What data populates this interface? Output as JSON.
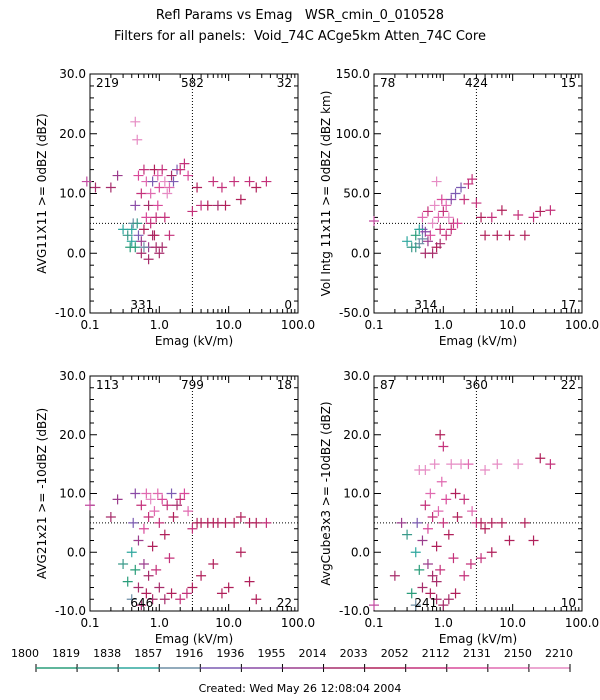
{
  "header": {
    "title": "Refl Params vs Emag   WSR_cmin_0_010528",
    "subtitle": "Filters for all panels:  Void_74C ACge5km Atten_74C Core"
  },
  "footer": {
    "created": "Created: Wed May 26 12:08:04 2004"
  },
  "colorbar": {
    "labels": [
      "1800",
      "1819",
      "1838",
      "1857",
      "1916",
      "1936",
      "1955",
      "2014",
      "2033",
      "2052",
      "2112",
      "2131",
      "2150",
      "2210"
    ],
    "colors": [
      "#2a9d7a",
      "#3a9a8a",
      "#2ea79e",
      "#6e8fa6",
      "#7c5cb2",
      "#8a4aa6",
      "#9b3d8d",
      "#a72d6b",
      "#b0205a",
      "#c4317a",
      "#d94a9a",
      "#e06ab0",
      "#e68cc4",
      "#c24aa0"
    ]
  },
  "chart_data": [
    {
      "type": "scatter",
      "xlabel": "Emag (kV/m)",
      "ylabel": "AVG11X11 >= 0dBZ (dBZ)",
      "xscale": "log",
      "xlim": [
        0.1,
        100.0
      ],
      "ylim": [
        -10,
        30
      ],
      "xticks": [
        "0.1",
        "1.0",
        "10.0",
        "100.0"
      ],
      "yticks": [
        "-10.0",
        "0.0",
        "10.0",
        "20.0",
        "30.0"
      ],
      "threshold_x": 3.0,
      "threshold_y": 5.0,
      "quadrant_counts": {
        "top_left": "219",
        "top_mid": "582",
        "top_right": "32",
        "bottom_mid": "331",
        "bottom_right": "0"
      },
      "points": [
        [
          0.09,
          12,
          13
        ],
        [
          0.12,
          11,
          7
        ],
        [
          0.2,
          11,
          7
        ],
        [
          0.25,
          13,
          6
        ],
        [
          0.3,
          4,
          2
        ],
        [
          0.35,
          3,
          1
        ],
        [
          0.38,
          1,
          0
        ],
        [
          0.4,
          2,
          2
        ],
        [
          0.42,
          5,
          3
        ],
        [
          0.45,
          8,
          5
        ],
        [
          0.45,
          22,
          12
        ],
        [
          0.48,
          19,
          12
        ],
        [
          0.5,
          3,
          4
        ],
        [
          0.5,
          13,
          10
        ],
        [
          0.55,
          0,
          7
        ],
        [
          0.55,
          10,
          9
        ],
        [
          0.6,
          14,
          9
        ],
        [
          0.6,
          4,
          8
        ],
        [
          0.65,
          6,
          10
        ],
        [
          0.65,
          12,
          11
        ],
        [
          0.7,
          8,
          7
        ],
        [
          0.7,
          1,
          6
        ],
        [
          0.75,
          10,
          11
        ],
        [
          0.8,
          12,
          4
        ],
        [
          0.8,
          3,
          7
        ],
        [
          0.85,
          14,
          8
        ],
        [
          0.9,
          6,
          9
        ],
        [
          0.95,
          13,
          11
        ],
        [
          1.0,
          11,
          10
        ],
        [
          1.0,
          0,
          7
        ],
        [
          1.1,
          14,
          9
        ],
        [
          1.2,
          12,
          12
        ],
        [
          1.3,
          10,
          12
        ],
        [
          1.4,
          11,
          11
        ],
        [
          1.5,
          13,
          7
        ],
        [
          1.6,
          12,
          4
        ],
        [
          1.8,
          14,
          4
        ],
        [
          2.0,
          14,
          9
        ],
        [
          2.3,
          15,
          9
        ],
        [
          2.6,
          13,
          10
        ],
        [
          3.0,
          7,
          9
        ],
        [
          3.5,
          11,
          8
        ],
        [
          4,
          8,
          9
        ],
        [
          5,
          8,
          8
        ],
        [
          6,
          12,
          9
        ],
        [
          7,
          8,
          7
        ],
        [
          8,
          11,
          9
        ],
        [
          9,
          8,
          8
        ],
        [
          12,
          12,
          9
        ],
        [
          15,
          9,
          8
        ],
        [
          20,
          12,
          9
        ],
        [
          25,
          11,
          8
        ],
        [
          35,
          12,
          9
        ],
        [
          0.9,
          1,
          7
        ],
        [
          0.55,
          2,
          6
        ],
        [
          0.45,
          1,
          0
        ],
        [
          0.48,
          5,
          1
        ],
        [
          0.4,
          4,
          2
        ],
        [
          0.6,
          1,
          3
        ],
        [
          0.7,
          -1,
          7
        ],
        [
          0.75,
          5,
          9
        ],
        [
          0.85,
          3,
          8
        ],
        [
          0.95,
          8,
          10
        ],
        [
          1.2,
          6,
          9
        ],
        [
          1.4,
          3,
          9
        ],
        [
          1.1,
          1,
          7
        ]
      ]
    },
    {
      "type": "scatter",
      "xlabel": "Emag (kV/m)",
      "ylabel": "Vol Intg 11x11 >= 0dBZ (dBZ km)",
      "xscale": "log",
      "xlim": [
        0.1,
        100.0
      ],
      "ylim": [
        -50,
        150
      ],
      "xticks": [
        "0.1",
        "1.0",
        "10.0",
        "100.0"
      ],
      "yticks": [
        "-50.0",
        "0.0",
        "50.0",
        "100.0",
        "150.0"
      ],
      "threshold_x": 3.0,
      "threshold_y": 25.0,
      "quadrant_counts": {
        "top_left": "78",
        "top_mid": "424",
        "top_right": "15",
        "bottom_mid": "314",
        "bottom_right": "17"
      },
      "points": [
        [
          0.1,
          27,
          13
        ],
        [
          0.3,
          10,
          2
        ],
        [
          0.35,
          5,
          1
        ],
        [
          0.4,
          15,
          0
        ],
        [
          0.45,
          8,
          3
        ],
        [
          0.5,
          20,
          4
        ],
        [
          0.5,
          30,
          11
        ],
        [
          0.55,
          0,
          7
        ],
        [
          0.6,
          35,
          9
        ],
        [
          0.65,
          15,
          10
        ],
        [
          0.7,
          25,
          12
        ],
        [
          0.75,
          40,
          12
        ],
        [
          0.8,
          5,
          8
        ],
        [
          0.85,
          30,
          11
        ],
        [
          0.9,
          20,
          9
        ],
        [
          0.95,
          45,
          10
        ],
        [
          1.0,
          35,
          9
        ],
        [
          1.1,
          40,
          11
        ],
        [
          1.2,
          30,
          12
        ],
        [
          1.3,
          45,
          5
        ],
        [
          1.4,
          25,
          9
        ],
        [
          1.5,
          50,
          4
        ],
        [
          1.8,
          55,
          4
        ],
        [
          2.0,
          45,
          9
        ],
        [
          2.3,
          58,
          9
        ],
        [
          2.6,
          62,
          9
        ],
        [
          3.0,
          42,
          9
        ],
        [
          3.5,
          30,
          8
        ],
        [
          4,
          15,
          8
        ],
        [
          5,
          30,
          9
        ],
        [
          6,
          15,
          8
        ],
        [
          7,
          36,
          8
        ],
        [
          9,
          15,
          8
        ],
        [
          12,
          32,
          9
        ],
        [
          15,
          15,
          8
        ],
        [
          20,
          30,
          9
        ],
        [
          25,
          35,
          8
        ],
        [
          35,
          36,
          9
        ],
        [
          0.7,
          0,
          7
        ],
        [
          0.6,
          10,
          6
        ],
        [
          0.55,
          18,
          5
        ],
        [
          0.45,
          20,
          2
        ],
        [
          0.9,
          8,
          7
        ],
        [
          1.1,
          15,
          9
        ],
        [
          1.3,
          20,
          9
        ],
        [
          0.8,
          60,
          12
        ],
        [
          1.6,
          25,
          10
        ],
        [
          0.4,
          5,
          1
        ],
        [
          0.5,
          12,
          3
        ]
      ]
    },
    {
      "type": "scatter",
      "xlabel": "Emag (kV/m)",
      "ylabel": "AVG21x21 >= -10dBZ (dBZ)",
      "xscale": "log",
      "xlim": [
        0.1,
        100.0
      ],
      "ylim": [
        -10,
        30
      ],
      "xticks": [
        "0.1",
        "1.0",
        "10.0",
        "100.0"
      ],
      "yticks": [
        "-10.0",
        "0.0",
        "10.0",
        "20.0",
        "30.0"
      ],
      "threshold_x": 3.0,
      "threshold_y": 5.0,
      "quadrant_counts": {
        "top_left": "113",
        "top_mid": "799",
        "top_right": "18",
        "bottom_mid": "646",
        "bottom_right": "22"
      },
      "points": [
        [
          0.1,
          8,
          13
        ],
        [
          0.2,
          6,
          7
        ],
        [
          0.25,
          9,
          6
        ],
        [
          0.3,
          -2,
          1
        ],
        [
          0.35,
          -5,
          0
        ],
        [
          0.4,
          0,
          2
        ],
        [
          0.4,
          -8,
          3
        ],
        [
          0.42,
          5,
          4
        ],
        [
          0.45,
          -3,
          0
        ],
        [
          0.45,
          10,
          5
        ],
        [
          0.5,
          2,
          6
        ],
        [
          0.5,
          -6,
          7
        ],
        [
          0.55,
          8,
          9
        ],
        [
          0.55,
          -9,
          7
        ],
        [
          0.6,
          4,
          10
        ],
        [
          0.6,
          -2,
          6
        ],
        [
          0.65,
          10,
          11
        ],
        [
          0.65,
          -7,
          8
        ],
        [
          0.7,
          6,
          9
        ],
        [
          0.7,
          -4,
          7
        ],
        [
          0.75,
          9,
          12
        ],
        [
          0.8,
          1,
          8
        ],
        [
          0.8,
          -8,
          7
        ],
        [
          0.85,
          7,
          11
        ],
        [
          0.9,
          -3,
          9
        ],
        [
          0.95,
          10,
          11
        ],
        [
          1.0,
          5,
          9
        ],
        [
          1.0,
          -6,
          7
        ],
        [
          1.1,
          9,
          10
        ],
        [
          1.2,
          3,
          8
        ],
        [
          1.3,
          8,
          9
        ],
        [
          1.4,
          -1,
          9
        ],
        [
          1.5,
          10,
          4
        ],
        [
          1.6,
          6,
          8
        ],
        [
          1.8,
          8,
          7
        ],
        [
          2.0,
          9,
          9
        ],
        [
          2.3,
          10,
          10
        ],
        [
          2.6,
          7,
          11
        ],
        [
          3.0,
          4,
          9
        ],
        [
          3.5,
          5,
          8
        ],
        [
          4,
          5,
          8
        ],
        [
          5,
          5,
          8
        ],
        [
          6,
          5,
          8
        ],
        [
          7,
          5,
          8
        ],
        [
          9,
          5,
          8
        ],
        [
          12,
          5,
          8
        ],
        [
          15,
          6,
          8
        ],
        [
          20,
          5,
          8
        ],
        [
          25,
          5,
          8
        ],
        [
          35,
          5,
          9
        ],
        [
          3.0,
          -6,
          8
        ],
        [
          4,
          -4,
          8
        ],
        [
          6,
          -2,
          8
        ],
        [
          8,
          -7,
          8
        ],
        [
          10,
          -6,
          8
        ],
        [
          15,
          0,
          8
        ],
        [
          20,
          -5,
          8
        ],
        [
          25,
          -8,
          8
        ],
        [
          1.2,
          -8,
          7
        ],
        [
          1.5,
          -7,
          8
        ],
        [
          2.0,
          -8,
          9
        ],
        [
          2.5,
          -7,
          9
        ]
      ]
    },
    {
      "type": "scatter",
      "xlabel": "Emag (kV/m)",
      "ylabel": "AvgCube3x3 >= -10dBZ (dBZ)",
      "xscale": "log",
      "xlim": [
        0.1,
        100.0
      ],
      "ylim": [
        -10,
        30
      ],
      "xticks": [
        "0.1",
        "1.0",
        "10.0",
        "100.0"
      ],
      "yticks": [
        "-10.0",
        "0.0",
        "10.0",
        "20.0",
        "30.0"
      ],
      "threshold_x": 3.0,
      "threshold_y": 5.0,
      "quadrant_counts": {
        "top_left": "87",
        "top_mid": "360",
        "top_right": "22",
        "bottom_mid": "241",
        "bottom_right": "10"
      },
      "points": [
        [
          0.1,
          -9,
          13
        ],
        [
          0.2,
          -4,
          7
        ],
        [
          0.25,
          5,
          6
        ],
        [
          0.3,
          3,
          1
        ],
        [
          0.35,
          -7,
          0
        ],
        [
          0.4,
          0,
          2
        ],
        [
          0.4,
          -9,
          3
        ],
        [
          0.42,
          5,
          4
        ],
        [
          0.45,
          -3,
          0
        ],
        [
          0.45,
          14,
          12
        ],
        [
          0.5,
          2,
          6
        ],
        [
          0.5,
          -6,
          7
        ],
        [
          0.55,
          8,
          9
        ],
        [
          0.55,
          14,
          12
        ],
        [
          0.6,
          4,
          10
        ],
        [
          0.6,
          -2,
          6
        ],
        [
          0.65,
          10,
          11
        ],
        [
          0.65,
          -7,
          8
        ],
        [
          0.7,
          6,
          9
        ],
        [
          0.7,
          -4,
          7
        ],
        [
          0.75,
          15,
          12
        ],
        [
          0.8,
          1,
          8
        ],
        [
          0.8,
          -8,
          7
        ],
        [
          0.85,
          7,
          11
        ],
        [
          0.9,
          20,
          8
        ],
        [
          0.9,
          -3,
          9
        ],
        [
          0.95,
          12,
          11
        ],
        [
          1.0,
          5,
          9
        ],
        [
          1.0,
          18,
          9
        ],
        [
          1.1,
          9,
          10
        ],
        [
          1.2,
          3,
          8
        ],
        [
          1.3,
          15,
          12
        ],
        [
          1.4,
          -1,
          9
        ],
        [
          1.5,
          10,
          8
        ],
        [
          1.6,
          6,
          8
        ],
        [
          1.8,
          15,
          12
        ],
        [
          2.0,
          9,
          9
        ],
        [
          2.3,
          15,
          11
        ],
        [
          2.6,
          7,
          11
        ],
        [
          3.0,
          5,
          9
        ],
        [
          3.5,
          5,
          8
        ],
        [
          4,
          4,
          8
        ],
        [
          5,
          5,
          8
        ],
        [
          6,
          15,
          12
        ],
        [
          7,
          5,
          8
        ],
        [
          9,
          2,
          8
        ],
        [
          12,
          15,
          12
        ],
        [
          15,
          5,
          8
        ],
        [
          20,
          2,
          8
        ],
        [
          25,
          16,
          8
        ],
        [
          35,
          15,
          9
        ],
        [
          1.2,
          -8,
          7
        ],
        [
          1.5,
          -7,
          8
        ],
        [
          2.0,
          -4,
          9
        ],
        [
          2.5,
          -2,
          9
        ],
        [
          3.5,
          -1,
          9
        ],
        [
          4,
          14,
          12
        ],
        [
          5,
          0,
          8
        ],
        [
          1.0,
          -9,
          7
        ],
        [
          0.8,
          -5,
          7
        ]
      ]
    }
  ]
}
